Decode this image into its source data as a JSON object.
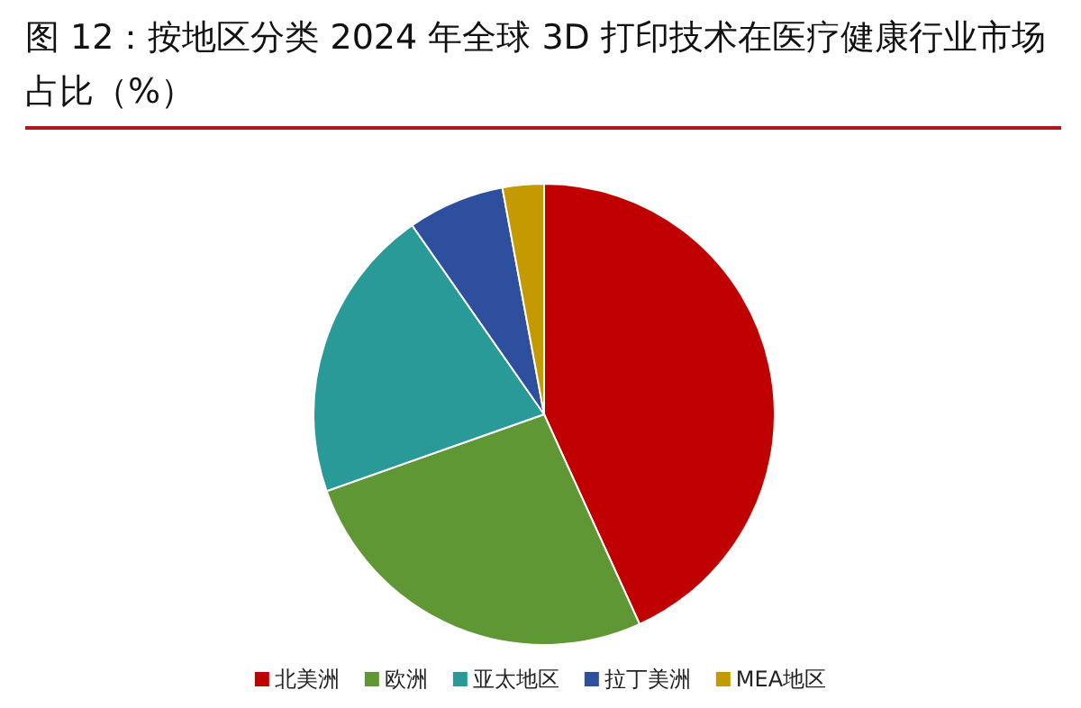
{
  "chart_data": {
    "type": "pie",
    "title": "图 12：按地区分类 2024 年全球 3D 打印技术在医疗健康行业市场占比（%）",
    "categories": [
      "北美洲",
      "欧洲",
      "亚太地区",
      "拉丁美洲",
      "MEA地区"
    ],
    "values": [
      43.2,
      26.4,
      20.7,
      6.8,
      2.9
    ],
    "colors": [
      "#c00000",
      "#5f9734",
      "#2a9a98",
      "#2e4e9e",
      "#c59a00"
    ],
    "legend": "bottom"
  }
}
